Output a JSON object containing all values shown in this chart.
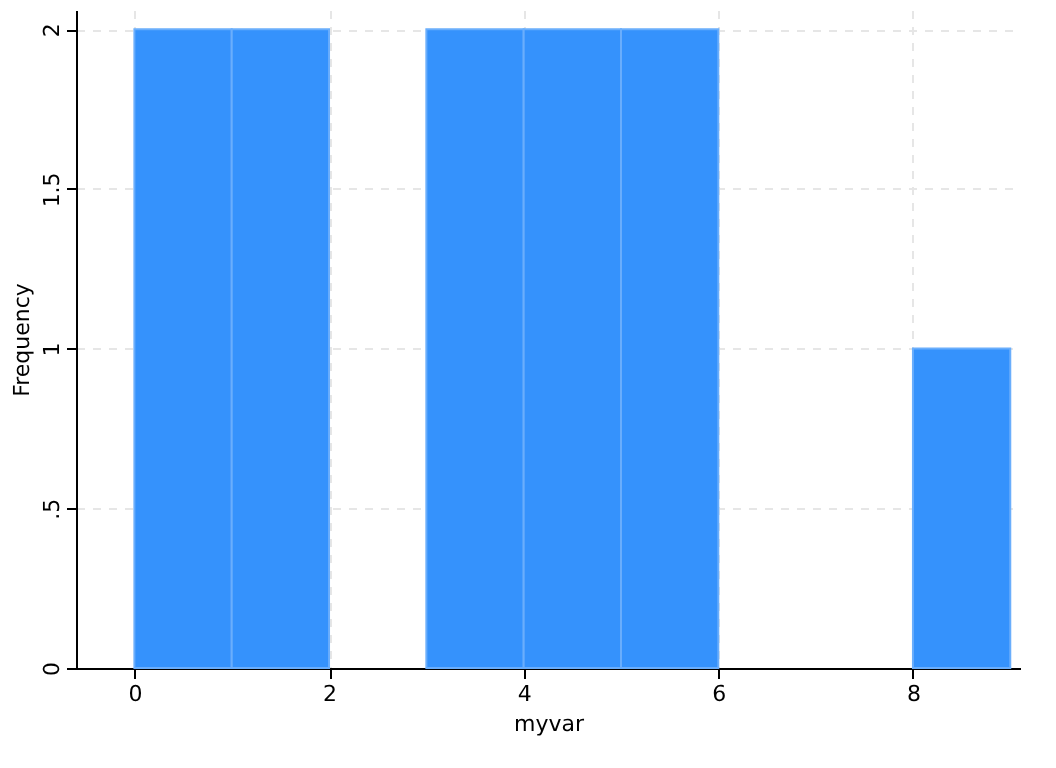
{
  "chart_data": {
    "type": "histogram",
    "xlabel": "myvar",
    "ylabel": "Frequency",
    "bins": [
      0,
      1,
      2,
      3,
      4,
      5,
      6,
      7,
      8,
      9
    ],
    "values": [
      2,
      2,
      0,
      2,
      2,
      2,
      0,
      0,
      1
    ],
    "color": "#3592fc",
    "xlim": [
      -0.6,
      9.1
    ],
    "ylim": [
      0,
      2.06
    ],
    "xticks": [
      0,
      2,
      4,
      6,
      8
    ],
    "yticks": [
      0,
      {
        "value": 0.5,
        "label": ".5"
      },
      1,
      1.5,
      2
    ],
    "grid": true
  }
}
